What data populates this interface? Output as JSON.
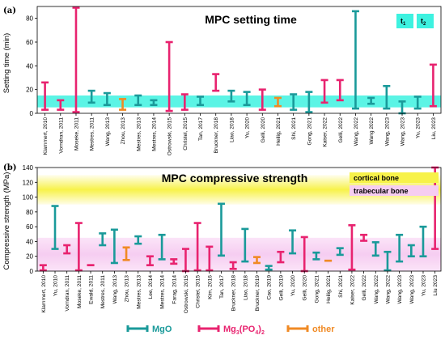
{
  "colors": {
    "MgO": "#1a9a9a",
    "Mg3(PO4)2": "#e8236f",
    "other": "#f08a24",
    "band_a": "#3ef2e0",
    "cortical": "#f7f24a",
    "trabecular": "#f4c6ee"
  },
  "legend": {
    "mgo": "MgO",
    "mg3_prefix": "Mg",
    "mg3_sub1": "3",
    "mg3_mid": "(PO",
    "mg3_sub2": "4",
    "mg3_close": ")",
    "mg3_sub3": "2",
    "other": "other"
  },
  "chart_data": [
    {
      "type": "bar",
      "panel_label": "(a)",
      "title": "MPC setting time",
      "ylabel": "Setting time (min)",
      "ylim": [
        0,
        90
      ],
      "yticks": [
        0,
        20,
        40,
        60,
        80
      ],
      "band": {
        "from": 5,
        "to": 15
      },
      "band_labels": [
        {
          "base": "t",
          "sub": "1"
        },
        {
          "base": "t",
          "sub": "2"
        }
      ],
      "categories": [
        "Klammert, 2010",
        "Vorndran, 2011",
        "Moseke, 2011",
        "Mestres, 2011",
        "Wang, 2013",
        "Zhou, 2013",
        "Mestres, 2013",
        "Mestres, 2014",
        "Ostrowski, 2015",
        "Christel, 2015",
        "Tan, 2017",
        "Bruckner, 2018",
        "Liao, 2018",
        "Yu, 2020",
        "Gelli, 2020",
        "Heilig, 2021",
        "Shi, 2021",
        "Gong, 2021",
        "Kaiser, 2022",
        "Gelli, 2022",
        "Wang, 2022",
        "Wang 2022",
        "Wang, 2023",
        "Wang, 2023",
        "Yu, 2023",
        "Liu, 2023"
      ],
      "series": [
        {
          "group": "Mg3(PO4)2",
          "low": 3,
          "high": 26
        },
        {
          "group": "Mg3(PO4)2",
          "low": 3,
          "high": 11
        },
        {
          "group": "Mg3(PO4)2",
          "low": 1,
          "high": 89
        },
        {
          "group": "MgO",
          "low": 9,
          "high": 19
        },
        {
          "group": "MgO",
          "low": 7,
          "high": 17
        },
        {
          "group": "other",
          "low": 3,
          "high": 12
        },
        {
          "group": "MgO",
          "low": 7,
          "high": 15
        },
        {
          "group": "MgO",
          "low": 7,
          "high": 11
        },
        {
          "group": "Mg3(PO4)2",
          "low": 2,
          "high": 60
        },
        {
          "group": "Mg3(PO4)2",
          "low": 3,
          "high": 16
        },
        {
          "group": "MgO",
          "low": 7,
          "high": 14
        },
        {
          "group": "Mg3(PO4)2",
          "low": 19,
          "high": 33
        },
        {
          "group": "MgO",
          "low": 10,
          "high": 19
        },
        {
          "group": "MgO",
          "low": 7,
          "high": 18
        },
        {
          "group": "Mg3(PO4)2",
          "low": 3,
          "high": 20
        },
        {
          "group": "other",
          "low": 6,
          "high": 13
        },
        {
          "group": "MgO",
          "low": 3,
          "high": 16
        },
        {
          "group": "MgO",
          "low": 1,
          "high": 18
        },
        {
          "group": "Mg3(PO4)2",
          "low": 9,
          "high": 28
        },
        {
          "group": "Mg3(PO4)2",
          "low": 11,
          "high": 28
        },
        {
          "group": "MgO",
          "low": 4,
          "high": 86
        },
        {
          "group": "MgO",
          "low": 8,
          "high": 13
        },
        {
          "group": "MgO",
          "low": 4,
          "high": 23
        },
        {
          "group": "MgO",
          "low": 0,
          "high": 10
        },
        {
          "group": "MgO",
          "low": 4,
          "high": 14
        },
        {
          "group": "Mg3(PO4)2",
          "low": 6,
          "high": 41
        }
      ]
    },
    {
      "type": "bar",
      "panel_label": "(b)",
      "title": "MPC compressive strength",
      "ylabel": "Compressive strength (MPa)",
      "ylim": [
        0,
        140
      ],
      "yticks": [
        0,
        20,
        40,
        60,
        80,
        100,
        120,
        140
      ],
      "bands": [
        {
          "label": "cortical bone",
          "from": 90,
          "to": 130
        },
        {
          "label": "trabecular bone",
          "from": 0,
          "to": 45
        }
      ],
      "categories": [
        "Klammert, 2010",
        "Yu, 2010",
        "Vorndran, 2011",
        "Moseke, 2011",
        "Ewald, 2011",
        "Mestres, 2011",
        "Wang, 2013",
        "Zhou, 2013",
        "Mestres, 2013",
        "Lee, 2014",
        "Mestres, 2014",
        "Farag, 2014",
        "Ostrowski, 2015",
        "Christel, 2015",
        "Kim, 2016",
        "Tan, 2017",
        "Bruckner, 2018",
        "Liao, 2018",
        "Bruckner, 2019",
        "Cao, 2019",
        "Gelli, 2019",
        "Yu, 2020",
        "Gelli, 2020",
        "Gong, 2021",
        "Heilig, 2021",
        "Shi, 2021",
        "Kaiser, 2022",
        "Gelli, 2022",
        "Wang, 2022",
        "Wang, 2022",
        "Wang, 2023",
        "Wang, 2023",
        "Yu, 2023",
        "Liu 2023"
      ],
      "series": [
        {
          "group": "Mg3(PO4)2",
          "low": 1,
          "high": 8
        },
        {
          "group": "MgO",
          "low": 30,
          "high": 88
        },
        {
          "group": "Mg3(PO4)2",
          "low": 24,
          "high": 35
        },
        {
          "group": "Mg3(PO4)2",
          "low": 1,
          "high": 65
        },
        {
          "group": "Mg3(PO4)2",
          "low": 8,
          "high": 8
        },
        {
          "group": "MgO",
          "low": 35,
          "high": 51
        },
        {
          "group": "MgO",
          "low": 11,
          "high": 56
        },
        {
          "group": "other",
          "low": 15,
          "high": 32
        },
        {
          "group": "MgO",
          "low": 37,
          "high": 47
        },
        {
          "group": "Mg3(PO4)2",
          "low": 8,
          "high": 20
        },
        {
          "group": "MgO",
          "low": 16,
          "high": 49
        },
        {
          "group": "Mg3(PO4)2",
          "low": 10,
          "high": 16
        },
        {
          "group": "Mg3(PO4)2",
          "low": 0,
          "high": 30
        },
        {
          "group": "Mg3(PO4)2",
          "low": 1,
          "high": 65
        },
        {
          "group": "Mg3(PO4)2",
          "low": 1,
          "high": 33
        },
        {
          "group": "MgO",
          "low": 21,
          "high": 91
        },
        {
          "group": "Mg3(PO4)2",
          "low": 3,
          "high": 12
        },
        {
          "group": "MgO",
          "low": 13,
          "high": 57
        },
        {
          "group": "other",
          "low": 11,
          "high": 19
        },
        {
          "group": "MgO",
          "low": 2,
          "high": 7
        },
        {
          "group": "Mg3(PO4)2",
          "low": 12,
          "high": 26
        },
        {
          "group": "MgO",
          "low": 24,
          "high": 55
        },
        {
          "group": "Mg3(PO4)2",
          "low": 0,
          "high": 46
        },
        {
          "group": "MgO",
          "low": 16,
          "high": 25
        },
        {
          "group": "other",
          "low": 14,
          "high": 14
        },
        {
          "group": "MgO",
          "low": 22,
          "high": 31
        },
        {
          "group": "Mg3(PO4)2",
          "low": 2,
          "high": 62
        },
        {
          "group": "Mg3(PO4)2",
          "low": 41,
          "high": 49
        },
        {
          "group": "MgO",
          "low": 21,
          "high": 39
        },
        {
          "group": "MgO",
          "low": 1,
          "high": 26
        },
        {
          "group": "MgO",
          "low": 13,
          "high": 49
        },
        {
          "group": "MgO",
          "low": 20,
          "high": 35
        },
        {
          "group": "MgO",
          "low": 20,
          "high": 60
        },
        {
          "group": "Mg3(PO4)2",
          "low": 30,
          "high": 140
        }
      ]
    }
  ]
}
